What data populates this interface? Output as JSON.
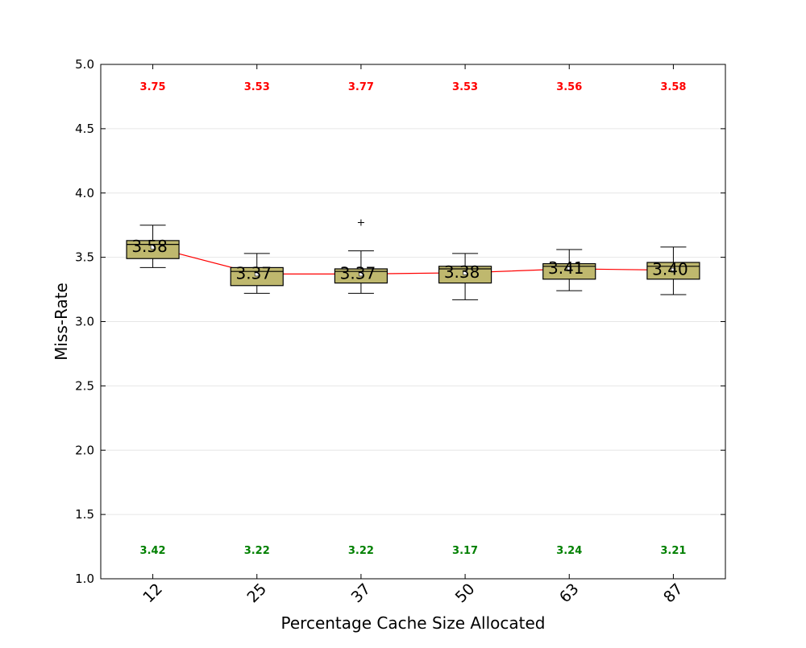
{
  "chart_data": {
    "type": "box",
    "title": "",
    "xlabel": "Percentage Cache Size Allocated",
    "ylabel": "Miss-Rate",
    "ylim": [
      1.0,
      5.0
    ],
    "yticks": [
      "1.0",
      "1.5",
      "2.0",
      "2.5",
      "3.0",
      "3.5",
      "4.0",
      "4.5",
      "5.0"
    ],
    "grid": "horizontal",
    "categories": [
      "12",
      "25",
      "37",
      "50",
      "63",
      "87"
    ],
    "boxes": [
      {
        "whisker_low": 3.42,
        "q1": 3.49,
        "median": 3.6,
        "q3": 3.63,
        "whisker_high": 3.75,
        "mean": 3.58,
        "outliers": []
      },
      {
        "whisker_low": 3.22,
        "q1": 3.28,
        "median": 3.39,
        "q3": 3.42,
        "whisker_high": 3.53,
        "mean": 3.37,
        "outliers": []
      },
      {
        "whisker_low": 3.22,
        "q1": 3.3,
        "median": 3.39,
        "q3": 3.41,
        "whisker_high": 3.55,
        "mean": 3.37,
        "outliers": [
          3.77
        ]
      },
      {
        "whisker_low": 3.17,
        "q1": 3.3,
        "median": 3.41,
        "q3": 3.43,
        "whisker_high": 3.53,
        "mean": 3.38,
        "outliers": []
      },
      {
        "whisker_low": 3.24,
        "q1": 3.33,
        "median": 3.43,
        "q3": 3.45,
        "whisker_high": 3.56,
        "mean": 3.41,
        "outliers": []
      },
      {
        "whisker_low": 3.21,
        "q1": 3.33,
        "median": 3.43,
        "q3": 3.46,
        "whisker_high": 3.58,
        "mean": 3.4,
        "outliers": []
      }
    ],
    "max_labels": [
      "3.75",
      "3.53",
      "3.77",
      "3.53",
      "3.56",
      "3.58"
    ],
    "min_labels": [
      "3.42",
      "3.22",
      "3.22",
      "3.17",
      "3.24",
      "3.21"
    ],
    "mean_labels": [
      "3.58",
      "3.37",
      "3.37",
      "3.38",
      "3.41",
      "3.40"
    ],
    "colors": {
      "box_fill": "#bfb86e",
      "mean_line": "#ff0000",
      "max_label": "#ff0000",
      "min_label": "#008000",
      "grid": "#e6e6e6"
    }
  }
}
